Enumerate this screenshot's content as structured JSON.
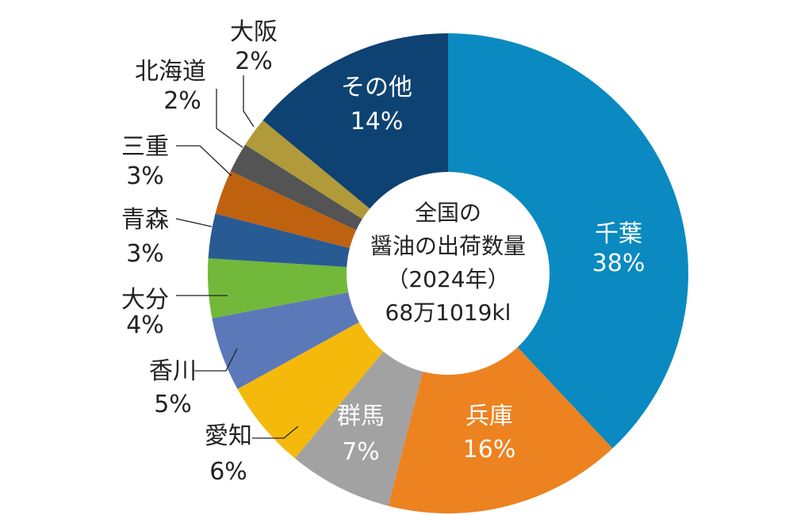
{
  "chart_data": {
    "type": "pie",
    "variant": "donut",
    "center_title": [
      "全国の",
      "醤油の出荷数量",
      "（2024年）",
      "68万1019kl"
    ],
    "start": "top",
    "direction": "clockwise",
    "slices": [
      {
        "label": "千葉",
        "value": 38,
        "value_label": "38%",
        "color": "#0a8ac0",
        "label_position": "inside"
      },
      {
        "label": "兵庫",
        "value": 16,
        "value_label": "16%",
        "color": "#ec8220",
        "label_position": "inside"
      },
      {
        "label": "群馬",
        "value": 7,
        "value_label": "7%",
        "color": "#a2a2a2",
        "label_position": "inside"
      },
      {
        "label": "愛知",
        "value": 6,
        "value_label": "6%",
        "color": "#f5b90c",
        "label_position": "outside"
      },
      {
        "label": "香川",
        "value": 5,
        "value_label": "5%",
        "color": "#5b78b8",
        "label_position": "outside"
      },
      {
        "label": "大分",
        "value": 4,
        "value_label": "4%",
        "color": "#72b83a",
        "label_position": "outside"
      },
      {
        "label": "青森",
        "value": 3,
        "value_label": "3%",
        "color": "#285a94",
        "label_position": "outside"
      },
      {
        "label": "三重",
        "value": 3,
        "value_label": "3%",
        "color": "#bf620f",
        "label_position": "outside"
      },
      {
        "label": "北海道",
        "value": 2,
        "value_label": "2%",
        "color": "#545454",
        "label_position": "outside"
      },
      {
        "label": "大阪",
        "value": 2,
        "value_label": "2%",
        "color": "#b09a3a",
        "label_position": "outside"
      },
      {
        "label": "その他",
        "value": 14,
        "value_label": "14%",
        "color": "#0e4272",
        "label_position": "inside"
      }
    ]
  }
}
